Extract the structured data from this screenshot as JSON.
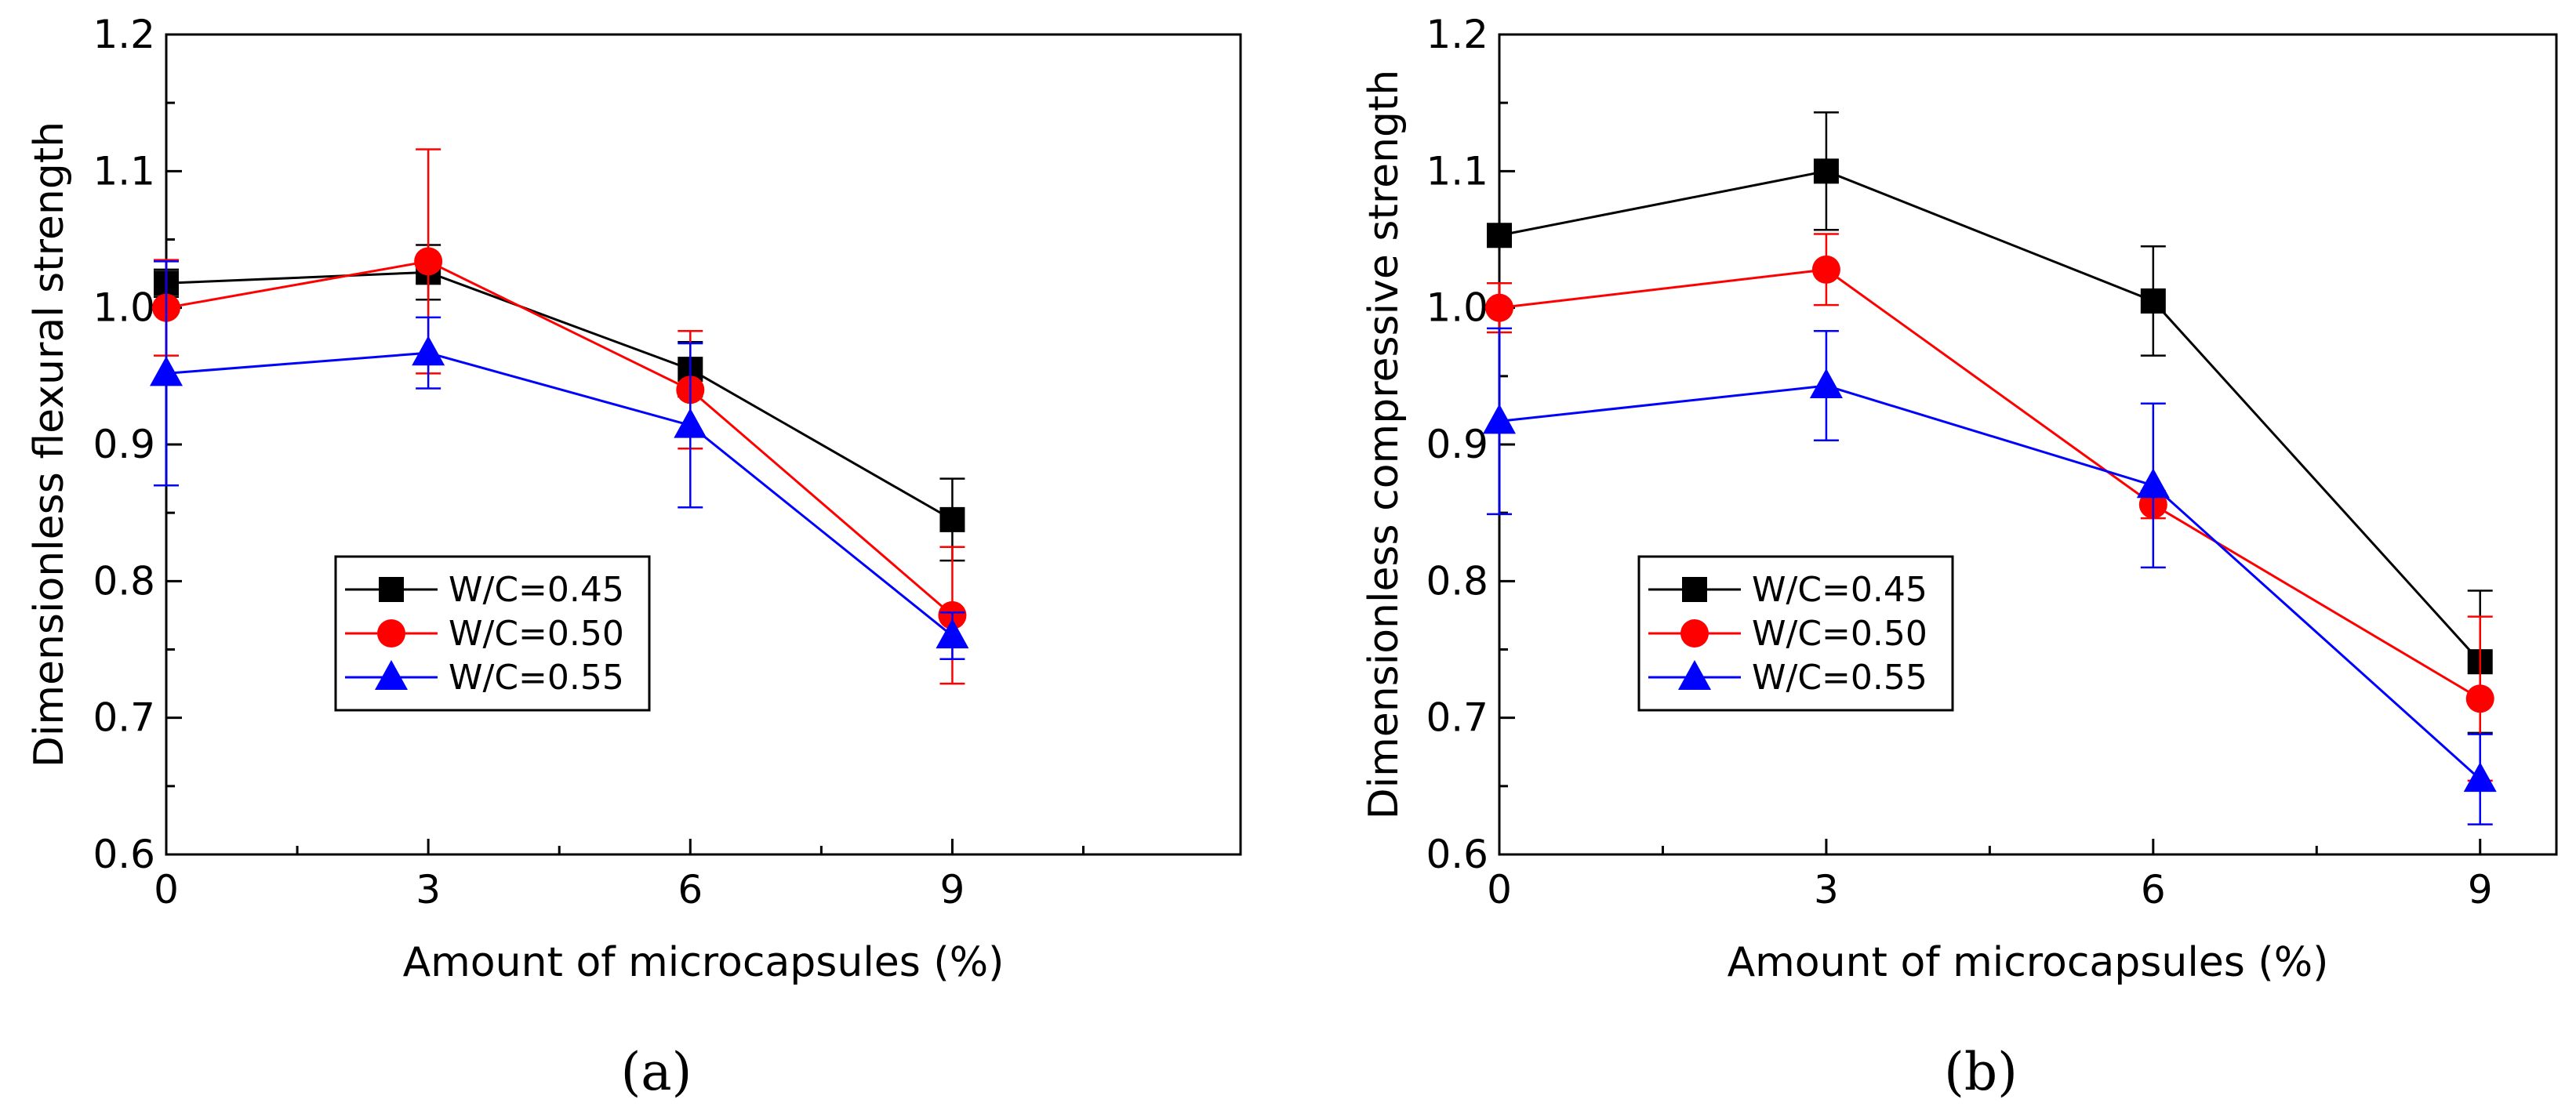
{
  "chart_data": [
    {
      "type": "line",
      "panel_label": "(a)",
      "xlabel": "Amount of microcapsules (%)",
      "ylabel": "Dimensionless flexural strength",
      "xlim": [
        0,
        12.3
      ],
      "ylim": [
        0.6,
        1.2
      ],
      "x": [
        0,
        3,
        6,
        9
      ],
      "x_ticks": [
        "0",
        "3",
        "6",
        "9"
      ],
      "y_ticks": [
        "0.6",
        "0.7",
        "0.8",
        "0.9",
        "1.0",
        "1.1",
        "1.2"
      ],
      "grid": false,
      "legend_position": "lower-left",
      "series": [
        {
          "name": "W/C=0.45",
          "color": "#000000",
          "marker": "square",
          "values": [
            1.018,
            1.026,
            0.955,
            0.845
          ],
          "errors": [
            0.01,
            0.02,
            0.02,
            0.03
          ]
        },
        {
          "name": "W/C=0.50",
          "color": "#ff0000",
          "marker": "circle",
          "values": [
            1.0,
            1.034,
            0.94,
            0.775
          ],
          "errors": [
            0.035,
            0.082,
            0.043,
            0.05
          ]
        },
        {
          "name": "W/C=0.55",
          "color": "#0000ff",
          "marker": "triangle",
          "values": [
            0.952,
            0.967,
            0.914,
            0.76
          ],
          "errors": [
            0.082,
            0.026,
            0.06,
            0.017
          ]
        }
      ]
    },
    {
      "type": "line",
      "panel_label": "(b)",
      "xlabel": "Amount of microcapsules (%)",
      "ylabel": "Dimensionless compressive strength",
      "xlim": [
        0,
        9.7
      ],
      "ylim": [
        0.6,
        1.2
      ],
      "x": [
        0,
        3,
        6,
        9
      ],
      "x_ticks": [
        "0",
        "3",
        "6",
        "9"
      ],
      "y_ticks": [
        "0.6",
        "0.7",
        "0.8",
        "0.9",
        "1.0",
        "1.1",
        "1.2"
      ],
      "grid": false,
      "legend_position": "lower-left",
      "series": [
        {
          "name": "W/C=0.45",
          "color": "#000000",
          "marker": "square",
          "values": [
            1.053,
            1.1,
            1.005,
            0.741
          ],
          "errors": [
            0.008,
            0.043,
            0.04,
            0.052
          ]
        },
        {
          "name": "W/C=0.50",
          "color": "#ff0000",
          "marker": "circle",
          "values": [
            1.0,
            1.028,
            0.856,
            0.714
          ],
          "errors": [
            0.018,
            0.026,
            0.01,
            0.06
          ]
        },
        {
          "name": "W/C=0.55",
          "color": "#0000ff",
          "marker": "triangle",
          "values": [
            0.917,
            0.943,
            0.87,
            0.655
          ],
          "errors": [
            0.068,
            0.04,
            0.06,
            0.033
          ]
        }
      ]
    }
  ]
}
